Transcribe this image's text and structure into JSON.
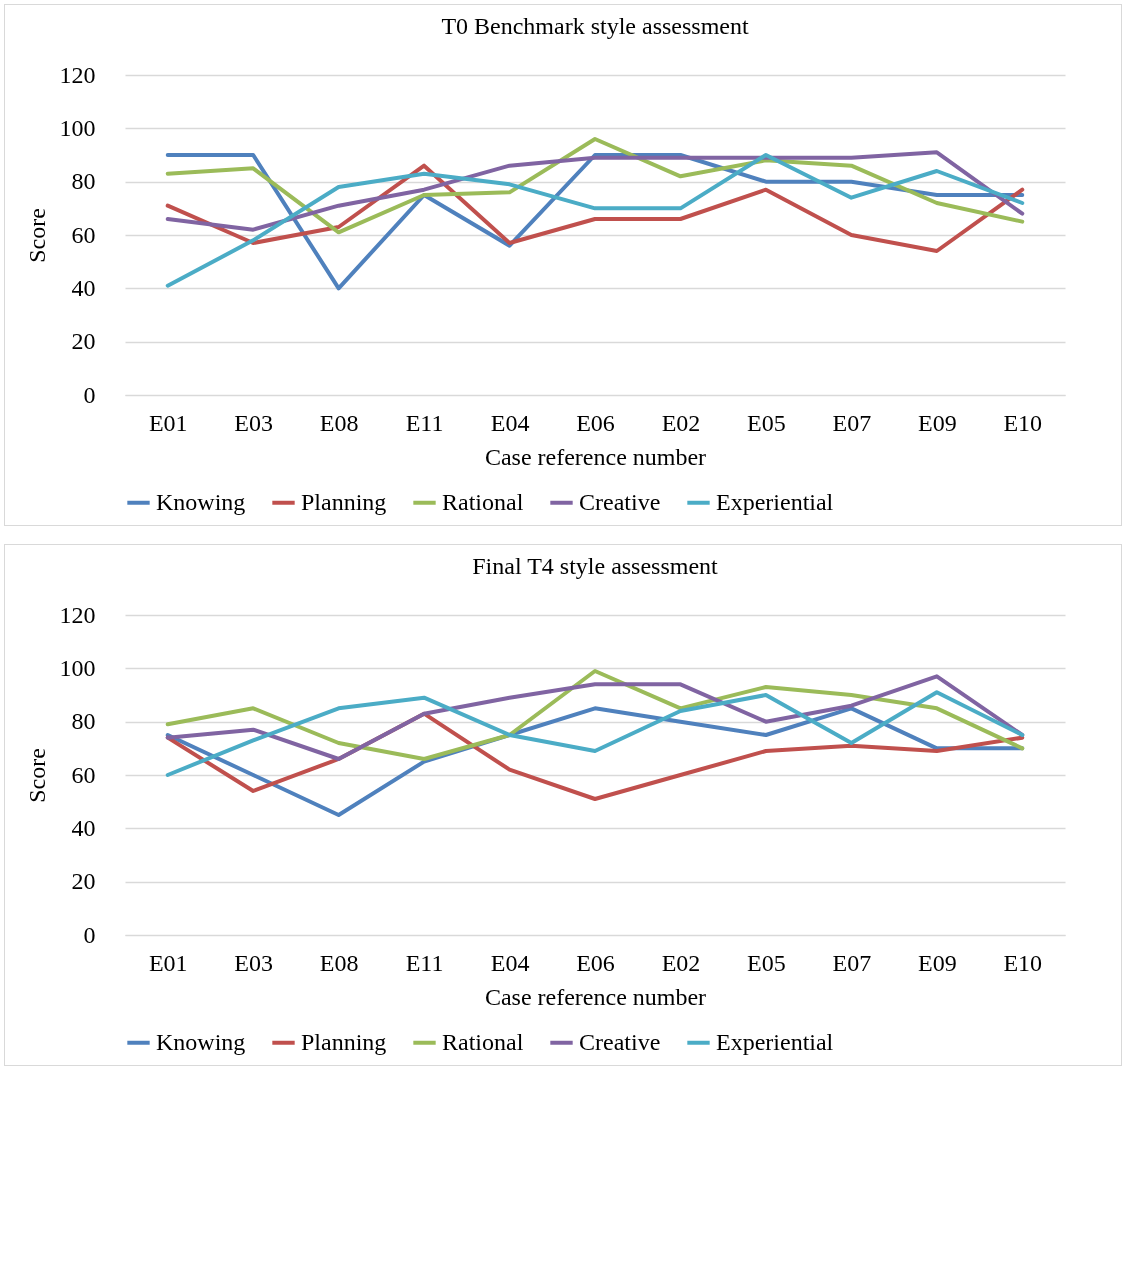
{
  "chart_data": [
    {
      "type": "line",
      "title": "T0 Benchmark style assessment",
      "xlabel": "Case reference number",
      "ylabel": "Score",
      "categories": [
        "E01",
        "E03",
        "E08",
        "E11",
        "E04",
        "E06",
        "E02",
        "E05",
        "E07",
        "E09",
        "E10"
      ],
      "ylim": [
        0,
        120
      ],
      "yticks": [
        0,
        20,
        40,
        60,
        80,
        100,
        120
      ],
      "grid": "y",
      "legend": "bottom",
      "marker": "none",
      "line_style": "solid",
      "series": [
        {
          "name": "Knowing",
          "color": "#4f81bd",
          "values": [
            90,
            90,
            40,
            75,
            56,
            90,
            90,
            80,
            80,
            75,
            75
          ]
        },
        {
          "name": "Planning",
          "color": "#c0504d",
          "values": [
            71,
            57,
            63,
            86,
            57,
            66,
            66,
            77,
            60,
            54,
            77
          ]
        },
        {
          "name": "Rational",
          "color": "#9bbb59",
          "values": [
            83,
            85,
            61,
            75,
            76,
            96,
            82,
            88,
            86,
            72,
            65
          ]
        },
        {
          "name": "Creative",
          "color": "#8064a2",
          "values": [
            66,
            62,
            71,
            77,
            86,
            89,
            89,
            89,
            89,
            91,
            68
          ]
        },
        {
          "name": "Experiential",
          "color": "#4bacc6",
          "values": [
            41,
            58,
            78,
            83,
            79,
            70,
            70,
            90,
            74,
            84,
            72
          ]
        }
      ]
    },
    {
      "type": "line",
      "title": "Final T4 style assessment",
      "xlabel": "Case reference number",
      "ylabel": "Score",
      "categories": [
        "E01",
        "E03",
        "E08",
        "E11",
        "E04",
        "E06",
        "E02",
        "E05",
        "E07",
        "E09",
        "E10"
      ],
      "ylim": [
        0,
        120
      ],
      "yticks": [
        0,
        20,
        40,
        60,
        80,
        100,
        120
      ],
      "grid": "y",
      "legend": "bottom",
      "marker": "none",
      "line_style": "solid",
      "series": [
        {
          "name": "Knowing",
          "color": "#4f81bd",
          "values": [
            75,
            60,
            45,
            65,
            75,
            85,
            80,
            75,
            85,
            70,
            70
          ]
        },
        {
          "name": "Planning",
          "color": "#c0504d",
          "values": [
            74,
            54,
            66,
            83,
            62,
            51,
            60,
            69,
            71,
            69,
            74
          ]
        },
        {
          "name": "Rational",
          "color": "#9bbb59",
          "values": [
            79,
            85,
            72,
            66,
            75,
            99,
            85,
            93,
            90,
            85,
            70
          ]
        },
        {
          "name": "Creative",
          "color": "#8064a2",
          "values": [
            74,
            77,
            66,
            83,
            89,
            94,
            94,
            80,
            86,
            97,
            75
          ]
        },
        {
          "name": "Experiential",
          "color": "#4bacc6",
          "values": [
            60,
            73,
            85,
            89,
            75,
            69,
            84,
            90,
            72,
            91,
            75
          ]
        }
      ]
    }
  ]
}
